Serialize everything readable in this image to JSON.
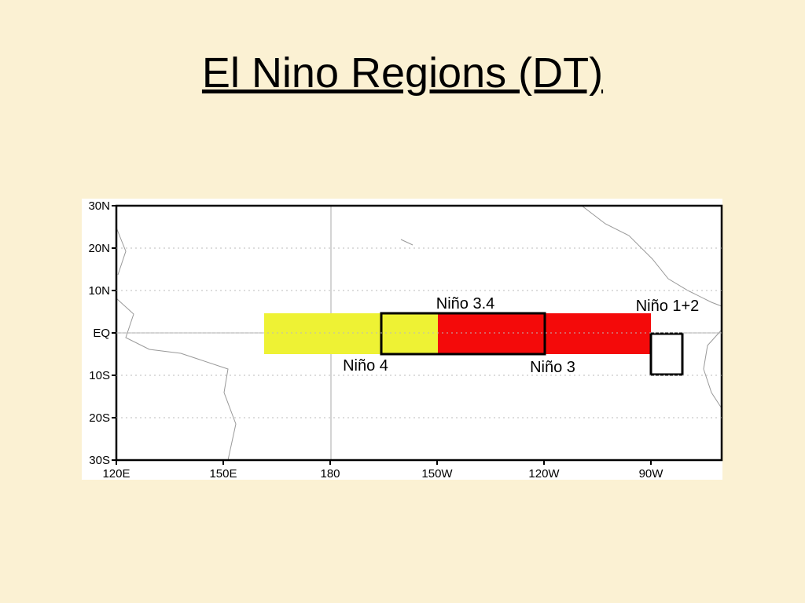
{
  "title": "El Nino Regions (DT)",
  "map": {
    "lat_labels": [
      "30N",
      "20N",
      "10N",
      "EQ",
      "10S",
      "20S",
      "30S"
    ],
    "lon_labels": [
      "120E",
      "150E",
      "180",
      "150W",
      "120W",
      "90W"
    ],
    "regions": {
      "nino4": "Niño 4",
      "nino34": "Niño 3.4",
      "nino3": "Niño 3",
      "nino12": "Niño 1+2"
    }
  }
}
